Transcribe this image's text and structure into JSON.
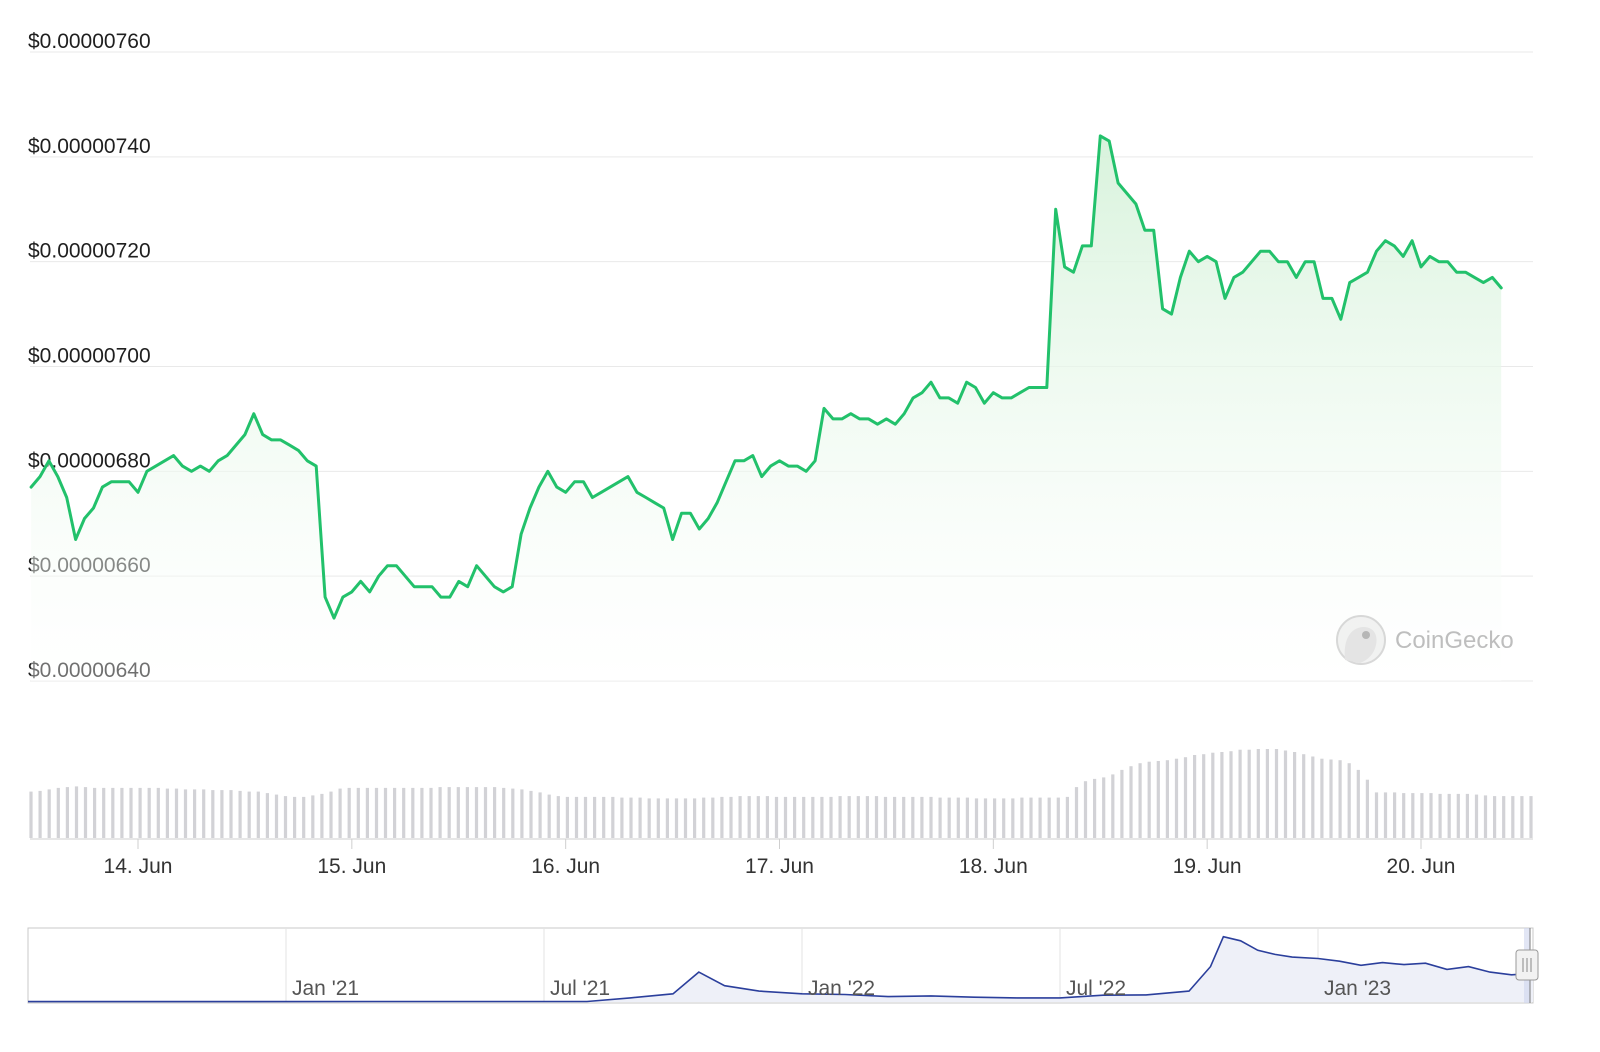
{
  "colors": {
    "price_line": "#22c16b",
    "price_fill_top": "#d6f2da",
    "grid": "#e9e9e9",
    "volume_bar": "#d2d2d6",
    "navigator_line": "#2b3f9c",
    "navigator_fill": "#eef0f8",
    "navigator_border": "#c9c9c9",
    "watermark": "#8a8a8a"
  },
  "watermark": {
    "label": "CoinGecko",
    "icon": "gecko-logo-icon"
  },
  "chart_data": [
    {
      "type": "area",
      "series": [
        {
          "x_start": "13 Jun 12:00",
          "x_step_hours": 1,
          "values": [
            6.77,
            6.79,
            6.82,
            6.79,
            6.75,
            6.67,
            6.71,
            6.73,
            6.77,
            6.78,
            6.78,
            6.78,
            6.76,
            6.8,
            6.81,
            6.82,
            6.83,
            6.81,
            6.8,
            6.81,
            6.8,
            6.82,
            6.83,
            6.85,
            6.87,
            6.91,
            6.87,
            6.86,
            6.86,
            6.85,
            6.84,
            6.82,
            6.81,
            6.56,
            6.52,
            6.56,
            6.57,
            6.59,
            6.57,
            6.6,
            6.62,
            6.62,
            6.6,
            6.58,
            6.58,
            6.58,
            6.56,
            6.56,
            6.59,
            6.58,
            6.62,
            6.6,
            6.58,
            6.57,
            6.58,
            6.68,
            6.73,
            6.77,
            6.8,
            6.77,
            6.76,
            6.78,
            6.78,
            6.75,
            6.76,
            6.77,
            6.78,
            6.79,
            6.76,
            6.75,
            6.74,
            6.73,
            6.67,
            6.72,
            6.72,
            6.69,
            6.71,
            6.74,
            6.78,
            6.82,
            6.82,
            6.83,
            6.79,
            6.81,
            6.82,
            6.81,
            6.81,
            6.8,
            6.82,
            6.92,
            6.9,
            6.9,
            6.91,
            6.9,
            6.9,
            6.89,
            6.9,
            6.89,
            6.91,
            6.94,
            6.95,
            6.97,
            6.94,
            6.94,
            6.93,
            6.97,
            6.96,
            6.93,
            6.95,
            6.94,
            6.94,
            6.95,
            6.96,
            6.96,
            6.96,
            7.3,
            7.19,
            7.18,
            7.23,
            7.23,
            7.44,
            7.43,
            7.35,
            7.33,
            7.31,
            7.26,
            7.26,
            7.11,
            7.1,
            7.17,
            7.22,
            7.2,
            7.21,
            7.2,
            7.13,
            7.17,
            7.18,
            7.2,
            7.22,
            7.22,
            7.2,
            7.2,
            7.17,
            7.2,
            7.2,
            7.13,
            7.13,
            7.09,
            7.16,
            7.17,
            7.18,
            7.22,
            7.24,
            7.23,
            7.21,
            7.24,
            7.19,
            7.21,
            7.2,
            7.2,
            7.18,
            7.18,
            7.17,
            7.16,
            7.17,
            7.15
          ]
        }
      ],
      "x_ticks": [
        "14. Jun",
        "15. Jun",
        "16. Jun",
        "17. Jun",
        "18. Jun",
        "19. Jun",
        "20. Jun"
      ],
      "x_tick_times": [
        "14 Jun 00:00",
        "15 Jun 00:00",
        "16 Jun 00:00",
        "17 Jun 00:00",
        "18 Jun 00:00",
        "19 Jun 00:00",
        "20 Jun 00:00"
      ],
      "y_ticks": [
        "$0.00000640",
        "$0.00000660",
        "$0.00000680",
        "$0.00000700",
        "$0.00000720",
        "$0.00000740",
        "$0.00000760"
      ],
      "y_tick_values": [
        6.4,
        6.6,
        6.8,
        7.0,
        7.2,
        7.4,
        7.6
      ],
      "ylim": [
        6.4,
        7.6
      ],
      "y_unit": "1e-6 USD",
      "grid": true,
      "legend": "none"
    },
    {
      "type": "bar",
      "series": [
        {
          "values": [
            6.2,
            6.3,
            6.5,
            6.7,
            6.8,
            6.9,
            6.8,
            6.7,
            6.7,
            6.7,
            6.7,
            6.7,
            6.7,
            6.7,
            6.7,
            6.6,
            6.6,
            6.5,
            6.5,
            6.5,
            6.4,
            6.4,
            6.4,
            6.3,
            6.2,
            6.2,
            6.0,
            5.8,
            5.6,
            5.5,
            5.5,
            5.7,
            5.9,
            6.2,
            6.6,
            6.7,
            6.7,
            6.7,
            6.7,
            6.7,
            6.7,
            6.7,
            6.7,
            6.7,
            6.7,
            6.8,
            6.8,
            6.8,
            6.8,
            6.8,
            6.8,
            6.8,
            6.7,
            6.6,
            6.5,
            6.3,
            6.1,
            5.8,
            5.6,
            5.5,
            5.5,
            5.5,
            5.5,
            5.5,
            5.5,
            5.4,
            5.4,
            5.4,
            5.3,
            5.3,
            5.3,
            5.3,
            5.3,
            5.3,
            5.4,
            5.4,
            5.5,
            5.5,
            5.6,
            5.6,
            5.6,
            5.6,
            5.5,
            5.5,
            5.5,
            5.5,
            5.5,
            5.5,
            5.5,
            5.6,
            5.6,
            5.6,
            5.6,
            5.6,
            5.5,
            5.5,
            5.5,
            5.5,
            5.5,
            5.5,
            5.4,
            5.4,
            5.4,
            5.4,
            5.3,
            5.3,
            5.3,
            5.3,
            5.3,
            5.4,
            5.4,
            5.4,
            5.4,
            5.4,
            5.5,
            6.8,
            7.6,
            7.9,
            8.1,
            8.5,
            9.1,
            9.6,
            10.0,
            10.2,
            10.3,
            10.4,
            10.6,
            10.8,
            11.1,
            11.2,
            11.4,
            11.5,
            11.6,
            11.8,
            11.8,
            11.9,
            11.9,
            11.9,
            11.7,
            11.5,
            11.2,
            10.9,
            10.6,
            10.5,
            10.4,
            10.0,
            9.1,
            7.8,
            6.1,
            6.1,
            6.1,
            6.0,
            6.0,
            6.0,
            6.0,
            5.9,
            5.9,
            5.9,
            5.9,
            5.8,
            5.7,
            5.6,
            5.6,
            5.6,
            5.6,
            5.6
          ]
        }
      ],
      "y_unit": "relative volume"
    },
    {
      "type": "line",
      "x_ticks": [
        "Jan '21",
        "Jul '21",
        "Jan '22",
        "Jul '22",
        "Jan '23"
      ],
      "x_tick_months": [
        6,
        12,
        18,
        24,
        30
      ],
      "x_range_months": [
        0,
        35
      ],
      "series": [
        {
          "values": [
            [
              0,
              0.3
            ],
            [
              4,
              0.3
            ],
            [
              8,
              0.35
            ],
            [
              13,
              0.4
            ],
            [
              14,
              3.0
            ],
            [
              15,
              6.0
            ],
            [
              15.6,
              22.0
            ],
            [
              16.2,
              12.0
            ],
            [
              17,
              8.0
            ],
            [
              18,
              6.0
            ],
            [
              19,
              5.5
            ],
            [
              20,
              4.0
            ],
            [
              21,
              4.5
            ],
            [
              22,
              3.5
            ],
            [
              23,
              3.0
            ],
            [
              24,
              3.0
            ],
            [
              25,
              5.0
            ],
            [
              26,
              5.2
            ],
            [
              27,
              8.0
            ],
            [
              27.5,
              26.0
            ],
            [
              27.8,
              48.0
            ],
            [
              28.2,
              45.0
            ],
            [
              28.6,
              38.0
            ],
            [
              29,
              35.0
            ],
            [
              29.4,
              33.0
            ],
            [
              30,
              32.0
            ],
            [
              30.5,
              30.0
            ],
            [
              31,
              27.0
            ],
            [
              31.5,
              29.0
            ],
            [
              32,
              27.5
            ],
            [
              32.5,
              28.5
            ],
            [
              33,
              24.0
            ],
            [
              33.5,
              26.0
            ],
            [
              34,
              22.0
            ],
            [
              34.5,
              20.0
            ],
            [
              35,
              21.0
            ]
          ]
        }
      ],
      "ylim": [
        0,
        50
      ]
    }
  ]
}
